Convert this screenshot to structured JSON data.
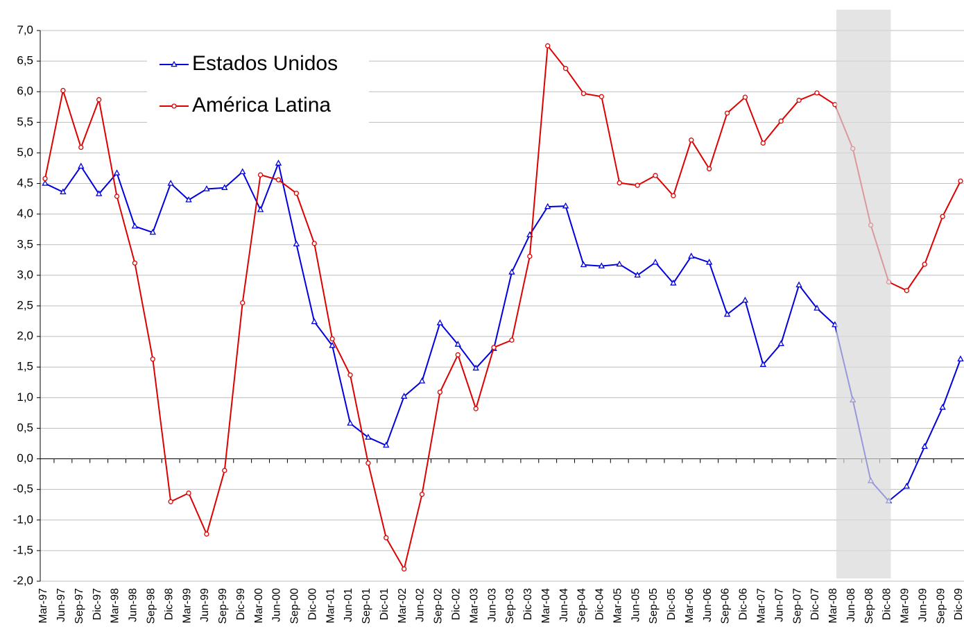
{
  "chart_data": {
    "type": "line",
    "categories": [
      "Mar-97",
      "Jun-97",
      "Sep-97",
      "Dic-97",
      "Mar-98",
      "Jun-98",
      "Sep-98",
      "Dic-98",
      "Mar-99",
      "Jun-99",
      "Sep-99",
      "Dic-99",
      "Mar-00",
      "Jun-00",
      "Sep-00",
      "Dic-00",
      "Mar-01",
      "Jun-01",
      "Sep-01",
      "Dic-01",
      "Mar-02",
      "Jun-02",
      "Sep-02",
      "Dic-02",
      "Mar-03",
      "Jun-03",
      "Sep-03",
      "Dic-03",
      "Mar-04",
      "Jun-04",
      "Sep-04",
      "Dic-04",
      "Mar-05",
      "Jun-05",
      "Sep-05",
      "Dic-05",
      "Mar-06",
      "Jun-06",
      "Sep-06",
      "Dic-06",
      "Mar-07",
      "Jun-07",
      "Sep-07",
      "Dic-07",
      "Mar-08",
      "Jun-08",
      "Sep-08",
      "Dic-08",
      "Mar-09",
      "Jun-09",
      "Sep-09",
      "Dic-09"
    ],
    "series": [
      {
        "name": "Estados Unidos",
        "color": "#0000dd",
        "marker": "triangle",
        "values": [
          4.5,
          4.36,
          4.78,
          4.33,
          4.67,
          3.8,
          3.7,
          4.5,
          4.23,
          4.41,
          4.43,
          4.69,
          4.07,
          4.83,
          3.51,
          2.24,
          1.85,
          0.58,
          0.35,
          0.22,
          1.02,
          1.27,
          2.22,
          1.87,
          1.48,
          1.8,
          3.05,
          3.66,
          4.12,
          4.13,
          3.17,
          3.15,
          3.18,
          3.0,
          3.21,
          2.87,
          3.31,
          3.21,
          2.36,
          2.59,
          1.54,
          1.88,
          2.84,
          2.46,
          2.19,
          0.96,
          -0.36,
          -0.69,
          -0.45,
          0.2,
          0.84,
          1.63
        ]
      },
      {
        "name": "América Latina",
        "color": "#dd0000",
        "marker": "circle",
        "values": [
          4.58,
          6.02,
          5.09,
          5.87,
          4.29,
          3.2,
          1.63,
          -0.7,
          -0.56,
          -1.23,
          -0.19,
          2.55,
          4.64,
          4.56,
          4.34,
          3.52,
          1.96,
          1.37,
          -0.07,
          -1.29,
          -1.8,
          -0.58,
          1.09,
          1.7,
          0.82,
          1.82,
          1.94,
          3.31,
          6.75,
          6.38,
          5.97,
          5.92,
          4.51,
          4.47,
          4.63,
          4.3,
          5.21,
          4.74,
          5.65,
          5.91,
          5.16,
          5.52,
          5.86,
          5.98,
          5.79,
          5.07,
          3.82,
          2.89,
          2.75,
          3.18,
          3.96,
          4.54
        ]
      }
    ],
    "ylim": [
      -2,
      7
    ],
    "yticks": [
      {
        "value": -2,
        "label": "-2,0"
      },
      {
        "value": -1.5,
        "label": "-1,5"
      },
      {
        "value": -1,
        "label": "-1,0"
      },
      {
        "value": -0.5,
        "label": "-0,5"
      },
      {
        "value": 0,
        "label": "0,0"
      },
      {
        "value": 0.5,
        "label": "0,5"
      },
      {
        "value": 1,
        "label": "1,0"
      },
      {
        "value": 1.5,
        "label": "1,5"
      },
      {
        "value": 2,
        "label": "2,0"
      },
      {
        "value": 2.5,
        "label": "2,5"
      },
      {
        "value": 3,
        "label": "3,0"
      },
      {
        "value": 3.5,
        "label": "3,5"
      },
      {
        "value": 4,
        "label": "4,0"
      },
      {
        "value": 4.5,
        "label": "4,5"
      },
      {
        "value": 5,
        "label": "5,0"
      },
      {
        "value": 5.5,
        "label": "5,5"
      },
      {
        "value": 6,
        "label": "6,0"
      },
      {
        "value": 6.5,
        "label": "6,5"
      },
      {
        "value": 7,
        "label": "7,0"
      }
    ],
    "grid": true,
    "legend": "upper-left",
    "highlight": {
      "from": "Mar-08",
      "to": "Dic-08",
      "color": "#d9d9d9"
    }
  }
}
